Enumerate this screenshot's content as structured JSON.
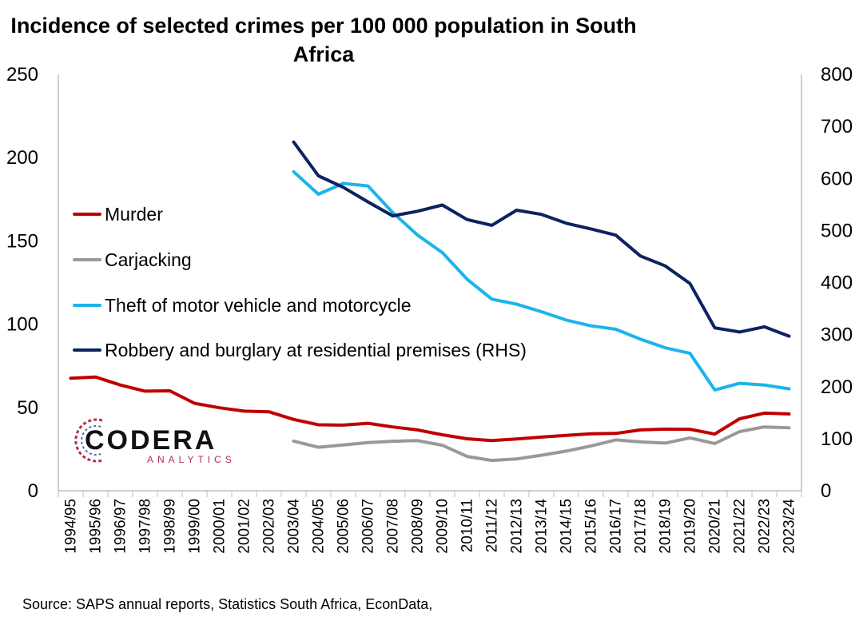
{
  "title": "Incidence of selected crimes per 100 000 population in South Africa",
  "source": "Source: SAPS annual reports, Statistics South Africa, EconData,",
  "logo": {
    "word": "CODERA",
    "sub": "ANALYTICS"
  },
  "chart_data": {
    "type": "line",
    "categories": [
      "1994/95",
      "1995/96",
      "1996/97",
      "1997/98",
      "1998/99",
      "1999/00",
      "2000/01",
      "2001/02",
      "2002/03",
      "2003/04",
      "2004/05",
      "2005/06",
      "2006/07",
      "2007/08",
      "2008/09",
      "2009/10",
      "2010/11",
      "2011/12",
      "2012/13",
      "2013/14",
      "2014/15",
      "2015/16",
      "2016/17",
      "2017/18",
      "2018/19",
      "2019/20",
      "2020/21",
      "2021/22",
      "2022/23",
      "2023/24"
    ],
    "y_left": {
      "min": 0,
      "max": 250,
      "ticks": [
        0,
        50,
        100,
        150,
        200,
        250
      ]
    },
    "y_right": {
      "min": 0,
      "max": 800,
      "ticks": [
        0,
        100,
        200,
        300,
        400,
        500,
        600,
        700,
        800
      ]
    },
    "legend_position": "left",
    "grid": false,
    "series": [
      {
        "name": "Murder",
        "axis": "left",
        "color": "#c00000",
        "values": [
          67.5,
          68.3,
          63.5,
          59.8,
          60.0,
          52.5,
          49.8,
          47.8,
          47.4,
          42.8,
          39.6,
          39.4,
          40.5,
          38.3,
          36.5,
          33.6,
          31.2,
          30.1,
          31.1,
          32.2,
          33.2,
          34.2,
          34.4,
          36.5,
          37.0,
          36.9,
          34.0,
          43.2,
          46.6,
          46.1
        ]
      },
      {
        "name": "Carjacking",
        "axis": "left",
        "color": "#999999",
        "values": [
          null,
          null,
          null,
          null,
          null,
          null,
          null,
          null,
          null,
          29.8,
          26.1,
          27.5,
          28.9,
          29.7,
          30.1,
          27.3,
          20.6,
          18.2,
          19.1,
          21.3,
          23.8,
          26.8,
          30.5,
          29.3,
          28.6,
          31.7,
          28.3,
          35.5,
          38.3,
          37.8
        ]
      },
      {
        "name": "Theft of motor vehicle and motorcycle",
        "axis": "left",
        "color": "#1cb4ea",
        "values": [
          null,
          null,
          null,
          null,
          null,
          null,
          null,
          null,
          null,
          191.5,
          178.0,
          184.5,
          183.0,
          167.0,
          153.5,
          143.0,
          127.0,
          115.0,
          112.0,
          107.5,
          102.5,
          99.0,
          97.0,
          91.0,
          85.8,
          82.5,
          60.5,
          64.5,
          63.5,
          61.2
        ]
      },
      {
        "name": "Robbery and burglary at residential premises (RHS)",
        "axis": "right",
        "color": "#0d2260",
        "values": [
          null,
          null,
          null,
          null,
          null,
          null,
          null,
          null,
          null,
          670,
          605,
          583,
          555,
          528,
          537,
          549,
          521,
          510,
          539,
          531,
          514,
          503,
          491,
          451,
          432,
          398,
          313,
          305,
          315,
          297
        ]
      }
    ]
  }
}
